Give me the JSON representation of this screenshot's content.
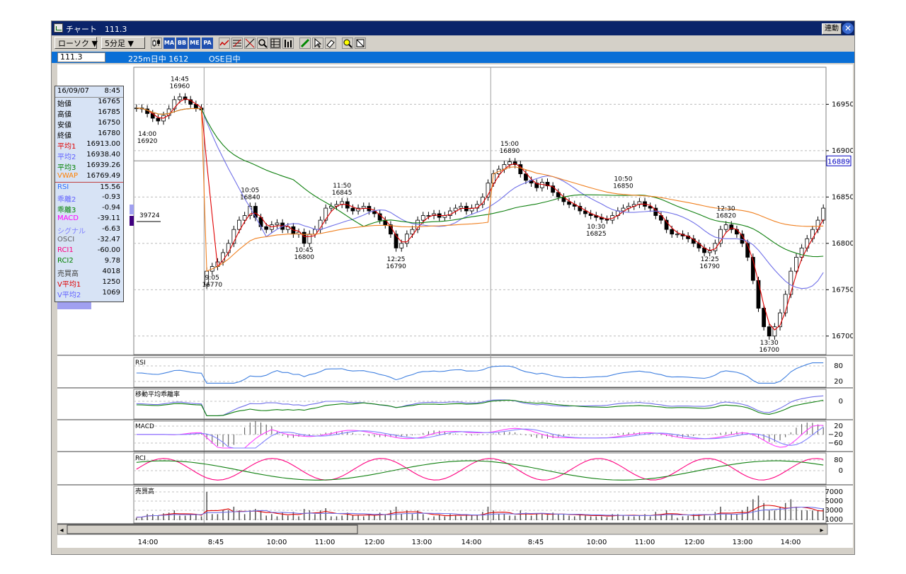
{
  "window": {
    "title": "チャート　111.3",
    "link_button": "連動",
    "close_glyph": "✕"
  },
  "toolbar": {
    "chart_type": "ローソク ▼",
    "interval": "5分足 ▼",
    "icons": [
      "candle-icon",
      "ma-icon",
      "bb-icon",
      "me-icon",
      "pa-icon",
      "line-tool-icon",
      "fibonacci-icon",
      "trend-icon",
      "zoom-icon",
      "grid-icon",
      "bars-icon",
      "pen-icon",
      "cursor-icon",
      "eraser-icon",
      "search-icon",
      "clear-icon"
    ],
    "icon_texts": {
      "ma": "MA",
      "bb": "BB",
      "me": "ME",
      "pa": "PA"
    }
  },
  "infobar": {
    "symbol": "111.3",
    "label1": "225m日中 1612",
    "label2": "OSE日中"
  },
  "panel": {
    "rows": [
      {
        "label": "16/09/07",
        "value": "8:45",
        "color": "#000000"
      },
      {
        "label": "始値",
        "value": "16765",
        "color": "#000000"
      },
      {
        "label": "高値",
        "value": "16785",
        "color": "#000000"
      },
      {
        "label": "安値",
        "value": "16750",
        "color": "#000000"
      },
      {
        "label": "終値",
        "value": "16780",
        "color": "#000000"
      },
      {
        "label": "平均1",
        "value": "16913.00",
        "color": "#e00000"
      },
      {
        "label": "平均2",
        "value": "16938.40",
        "color": "#6060ff"
      },
      {
        "label": "平均3",
        "value": "16939.26",
        "color": "#008000"
      },
      {
        "label": "VWAP",
        "value": "16769.49",
        "color": "#ff8000"
      },
      {
        "label": "RSI",
        "value": "15.56",
        "color": "#3070ff"
      },
      {
        "label": "乖離2",
        "value": "-0.93",
        "color": "#6060ff"
      },
      {
        "label": "乖離3",
        "value": "-0.94",
        "color": "#008000"
      },
      {
        "label": "MACD",
        "value": "-39.11",
        "color": "#ff00ff"
      },
      {
        "label": "シグナル",
        "value": "-6.63",
        "color": "#8080ff"
      },
      {
        "label": "OSCI",
        "value": "-32.47",
        "color": "#606060"
      },
      {
        "label": "RCI1",
        "value": "-60.00",
        "color": "#ff0080"
      },
      {
        "label": "RCI2",
        "value": "9.78",
        "color": "#008000"
      },
      {
        "label": "売買高",
        "value": "4018",
        "color": "#404040"
      },
      {
        "label": "V平均1",
        "value": "1250",
        "color": "#e00000"
      },
      {
        "label": "V平均2",
        "value": "1069",
        "color": "#6060ff"
      }
    ]
  },
  "chart_data": {
    "type": "candlestick",
    "ylim": [
      16680,
      16990
    ],
    "ytick_values": [
      16700,
      16750,
      16800,
      16850,
      16900,
      16950
    ],
    "current_price": "16889",
    "volume_profile_label": "39724",
    "xtick_labels": [
      "14:00",
      "8:45",
      "10:00",
      "11:00",
      "12:00",
      "13:00",
      "14:00",
      "8:45",
      "10:00",
      "11:00",
      "12:00",
      "13:00",
      "14:00"
    ],
    "session_break_labels": [
      "8:45",
      "8:45"
    ],
    "closes": [
      16946,
      16945,
      16940,
      16935,
      16932,
      16938,
      16945,
      16955,
      16958,
      16955,
      16950,
      16946,
      16944,
      16770,
      16775,
      16780,
      16790,
      16800,
      16815,
      16825,
      16830,
      16840,
      16828,
      16818,
      16815,
      16820,
      16822,
      16815,
      16818,
      16810,
      16812,
      16800,
      16810,
      16815,
      16825,
      16838,
      16840,
      16842,
      16845,
      16838,
      16835,
      16838,
      16840,
      16835,
      16832,
      16825,
      16820,
      16810,
      16795,
      16800,
      16810,
      16815,
      16825,
      16830,
      16830,
      16832,
      16828,
      16830,
      16835,
      16838,
      16840,
      16835,
      16838,
      16842,
      16850,
      16865,
      16875,
      16880,
      16885,
      16888,
      16885,
      16875,
      16868,
      16865,
      16860,
      16866,
      16862,
      16855,
      16850,
      16845,
      16842,
      16840,
      16835,
      16832,
      16830,
      16828,
      16826,
      16825,
      16830,
      16835,
      16838,
      16840,
      16842,
      16845,
      16840,
      16838,
      16830,
      16825,
      16815,
      16810,
      16810,
      16808,
      16805,
      16800,
      16795,
      16790,
      16792,
      16800,
      16815,
      16820,
      16815,
      16810,
      16800,
      16785,
      16760,
      16730,
      16710,
      16700,
      16710,
      16725,
      16745,
      16770,
      16785,
      16795,
      16805,
      16815,
      16825,
      16838
    ],
    "annotations": [
      {
        "time": "14:45",
        "price": "16960",
        "i": 8,
        "y": 16960,
        "pos": "above"
      },
      {
        "time": "14:00",
        "price": "16920",
        "i": 2,
        "y": 16925,
        "pos": "below"
      },
      {
        "time": "9:05",
        "price": "16770",
        "i": 14,
        "y": 16770,
        "pos": "below"
      },
      {
        "time": "10:05",
        "price": "16840",
        "i": 21,
        "y": 16840,
        "pos": "above"
      },
      {
        "time": "10:45",
        "price": "16800",
        "i": 31,
        "y": 16800,
        "pos": "below"
      },
      {
        "time": "11:50",
        "price": "16845",
        "i": 38,
        "y": 16845,
        "pos": "above"
      },
      {
        "time": "12:25",
        "price": "16790",
        "i": 48,
        "y": 16790,
        "pos": "below"
      },
      {
        "time": "15:00",
        "price": "16890",
        "i": 69,
        "y": 16890,
        "pos": "above"
      },
      {
        "time": "10:50",
        "price": "16850",
        "i": 90,
        "y": 16852,
        "pos": "above"
      },
      {
        "time": "10:30",
        "price": "16825",
        "i": 85,
        "y": 16825,
        "pos": "below"
      },
      {
        "time": "12:30",
        "price": "16820",
        "i": 109,
        "y": 16820,
        "pos": "above"
      },
      {
        "time": "12:25",
        "price": "16790",
        "i": 106,
        "y": 16790,
        "pos": "below"
      },
      {
        "time": "13:30",
        "price": "16700",
        "i": 117,
        "y": 16700,
        "pos": "below"
      }
    ],
    "indicators": {
      "rsi": {
        "label": "RSI",
        "ticks": [
          "80",
          "20"
        ]
      },
      "deviation": {
        "label": "移動平均乖離率",
        "ticks": [
          "0"
        ]
      },
      "macd": {
        "label": "MACD",
        "ticks": [
          "20",
          "−20",
          "−60"
        ]
      },
      "rci": {
        "label": "RCI",
        "ticks": [
          "80",
          "0"
        ]
      },
      "volume": {
        "label": "売買高",
        "ticks": [
          "7000",
          "5000",
          "3000",
          "1000"
        ]
      }
    },
    "scrollbar": {
      "left_arrow": "◂",
      "right_arrow": "▸"
    }
  },
  "colors": {
    "ma1": "#e00000",
    "ma2": "#7070e8",
    "ma3": "#108010",
    "vwap": "#f08020",
    "rsi": "#4080e0",
    "rci1": "#ff0080",
    "rci2": "#108010",
    "candle": "#000000"
  }
}
